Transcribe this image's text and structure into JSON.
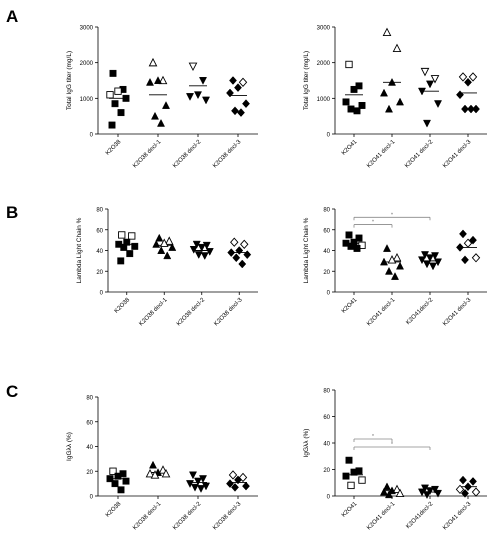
{
  "panels": [
    {
      "letter": "A"
    },
    {
      "letter": "B"
    },
    {
      "letter": "C"
    }
  ],
  "chart_data": [
    {
      "id": "A-left",
      "type": "scatter",
      "ylabel": "Total IgG titer (mg/L)",
      "ylim": [
        0,
        3000
      ],
      "yticks": [
        0,
        1000,
        2000,
        3000
      ],
      "categories": [
        "K2O38",
        "K2O38 decl-1",
        "K2O38 decl-2",
        "K2O38 decl-3"
      ],
      "groups": [
        {
          "category": "K2O38",
          "marker": "square",
          "means": 1000,
          "points": [
            {
              "y": 1700,
              "open": false
            },
            {
              "y": 1250,
              "open": false
            },
            {
              "y": 1200,
              "open": true
            },
            {
              "y": 1100,
              "open": true
            },
            {
              "y": 1000,
              "open": false
            },
            {
              "y": 850,
              "open": false
            },
            {
              "y": 600,
              "open": false
            },
            {
              "y": 250,
              "open": false
            }
          ]
        },
        {
          "category": "K2O38 decl-1",
          "marker": "triangle-up",
          "means": 1100,
          "points": [
            {
              "y": 2000,
              "open": true
            },
            {
              "y": 1500,
              "open": true
            },
            {
              "y": 1500,
              "open": false
            },
            {
              "y": 1450,
              "open": false
            },
            {
              "y": 800,
              "open": false
            },
            {
              "y": 500,
              "open": false
            },
            {
              "y": 300,
              "open": false
            }
          ]
        },
        {
          "category": "K2O38 decl-2",
          "marker": "triangle-down",
          "means": 1350,
          "points": [
            {
              "y": 1900,
              "open": true
            },
            {
              "y": 1500,
              "open": false
            },
            {
              "y": 1100,
              "open": false
            },
            {
              "y": 1050,
              "open": false
            },
            {
              "y": 950,
              "open": false
            }
          ]
        },
        {
          "category": "K2O38 decl-3",
          "marker": "diamond",
          "means": 1080,
          "points": [
            {
              "y": 1500,
              "open": false
            },
            {
              "y": 1450,
              "open": true
            },
            {
              "y": 1300,
              "open": false
            },
            {
              "y": 1150,
              "open": false
            },
            {
              "y": 850,
              "open": false
            },
            {
              "y": 650,
              "open": false
            },
            {
              "y": 600,
              "open": false
            }
          ]
        }
      ]
    },
    {
      "id": "A-right",
      "type": "scatter",
      "ylabel": "Total IgG titer (mg/L)",
      "ylim": [
        0,
        3000
      ],
      "yticks": [
        0,
        1000,
        2000,
        3000
      ],
      "categories": [
        "K2O41",
        "K2O41 decl-1",
        "K2O41 decl-2",
        "K2O41 decl-3"
      ],
      "groups": [
        {
          "category": "K2O41",
          "marker": "square",
          "means": 1100,
          "points": [
            {
              "y": 1950,
              "open": true
            },
            {
              "y": 1350,
              "open": false
            },
            {
              "y": 1250,
              "open": false
            },
            {
              "y": 900,
              "open": false
            },
            {
              "y": 800,
              "open": false
            },
            {
              "y": 700,
              "open": false
            },
            {
              "y": 650,
              "open": false
            }
          ]
        },
        {
          "category": "K2O41 decl-1",
          "marker": "triangle-up",
          "means": 1450,
          "points": [
            {
              "y": 2850,
              "open": true
            },
            {
              "y": 2400,
              "open": true
            },
            {
              "y": 1450,
              "open": false
            },
            {
              "y": 1150,
              "open": false
            },
            {
              "y": 900,
              "open": false
            },
            {
              "y": 700,
              "open": false
            }
          ]
        },
        {
          "category": "K2O41 decl-2",
          "marker": "triangle-down",
          "means": 1200,
          "points": [
            {
              "y": 1750,
              "open": true
            },
            {
              "y": 1550,
              "open": true
            },
            {
              "y": 1400,
              "open": false
            },
            {
              "y": 1200,
              "open": false
            },
            {
              "y": 850,
              "open": false
            },
            {
              "y": 300,
              "open": false
            }
          ]
        },
        {
          "category": "K2O41 decl-3",
          "marker": "diamond",
          "means": 1150,
          "points": [
            {
              "y": 1600,
              "open": true
            },
            {
              "y": 1600,
              "open": true
            },
            {
              "y": 1450,
              "open": false
            },
            {
              "y": 1100,
              "open": false
            },
            {
              "y": 700,
              "open": false
            },
            {
              "y": 700,
              "open": false
            },
            {
              "y": 700,
              "open": false
            }
          ]
        }
      ]
    },
    {
      "id": "B-left",
      "type": "scatter",
      "ylabel": "Lambda Light Chain %",
      "ylim": [
        0,
        80
      ],
      "yticks": [
        0,
        20,
        40,
        60,
        80
      ],
      "categories": [
        "K2O38",
        "K2O38 decl-1",
        "K2O38 decl-2",
        "K2O38 decl-3"
      ],
      "groups": [
        {
          "category": "K2O38",
          "marker": "square",
          "means": 46,
          "points": [
            {
              "y": 55,
              "open": true
            },
            {
              "y": 54,
              "open": true
            },
            {
              "y": 48,
              "open": false
            },
            {
              "y": 46,
              "open": false
            },
            {
              "y": 44,
              "open": false
            },
            {
              "y": 43,
              "open": false
            },
            {
              "y": 37,
              "open": false
            },
            {
              "y": 30,
              "open": false
            }
          ]
        },
        {
          "category": "K2O38 decl-1",
          "marker": "triangle-up",
          "means": 45,
          "points": [
            {
              "y": 52,
              "open": false
            },
            {
              "y": 49,
              "open": true
            },
            {
              "y": 47,
              "open": true
            },
            {
              "y": 46,
              "open": false
            },
            {
              "y": 43,
              "open": false
            },
            {
              "y": 40,
              "open": false
            },
            {
              "y": 35,
              "open": false
            }
          ]
        },
        {
          "category": "K2O38 decl-2",
          "marker": "triangle-down",
          "means": 40,
          "points": [
            {
              "y": 46,
              "open": false
            },
            {
              "y": 45,
              "open": false
            },
            {
              "y": 43,
              "open": false
            },
            {
              "y": 41,
              "open": false
            },
            {
              "y": 39,
              "open": false
            },
            {
              "y": 36,
              "open": false
            },
            {
              "y": 35,
              "open": false
            }
          ]
        },
        {
          "category": "K2O38 decl-3",
          "marker": "diamond",
          "means": 38,
          "points": [
            {
              "y": 48,
              "open": true
            },
            {
              "y": 46,
              "open": true
            },
            {
              "y": 40,
              "open": false
            },
            {
              "y": 38,
              "open": false
            },
            {
              "y": 36,
              "open": false
            },
            {
              "y": 33,
              "open": false
            },
            {
              "y": 27,
              "open": false
            }
          ]
        }
      ]
    },
    {
      "id": "B-right",
      "type": "scatter",
      "ylabel": "Lambda Light Chain %",
      "ylim": [
        0,
        80
      ],
      "yticks": [
        0,
        20,
        40,
        60,
        80
      ],
      "categories": [
        "K2O41",
        "K2O41 decl-1",
        "K2O41decl-2",
        "K2O41 decl-3"
      ],
      "groups": [
        {
          "category": "K2O41",
          "marker": "square",
          "means": 47,
          "points": [
            {
              "y": 55,
              "open": false
            },
            {
              "y": 52,
              "open": false
            },
            {
              "y": 48,
              "open": false
            },
            {
              "y": 47,
              "open": false
            },
            {
              "y": 45,
              "open": true
            },
            {
              "y": 44,
              "open": false
            },
            {
              "y": 42,
              "open": false
            }
          ]
        },
        {
          "category": "K2O41 decl-1",
          "marker": "triangle-up",
          "means": 29,
          "points": [
            {
              "y": 42,
              "open": false
            },
            {
              "y": 33,
              "open": true
            },
            {
              "y": 31,
              "open": true
            },
            {
              "y": 29,
              "open": false
            },
            {
              "y": 25,
              "open": false
            },
            {
              "y": 20,
              "open": false
            },
            {
              "y": 15,
              "open": false
            }
          ]
        },
        {
          "category": "K2O41decl-2",
          "marker": "triangle-down",
          "means": 30,
          "points": [
            {
              "y": 36,
              "open": false
            },
            {
              "y": 35,
              "open": false
            },
            {
              "y": 33,
              "open": false
            },
            {
              "y": 31,
              "open": false
            },
            {
              "y": 29,
              "open": false
            },
            {
              "y": 27,
              "open": false
            },
            {
              "y": 25,
              "open": false
            }
          ]
        },
        {
          "category": "K2O41 decl-3",
          "marker": "diamond",
          "means": 43,
          "points": [
            {
              "y": 56,
              "open": false
            },
            {
              "y": 50,
              "open": false
            },
            {
              "y": 47,
              "open": true
            },
            {
              "y": 43,
              "open": false
            },
            {
              "y": 33,
              "open": true
            },
            {
              "y": 31,
              "open": false
            }
          ]
        }
      ],
      "significance": [
        {
          "from": "K2O41",
          "to": "K2O41 decl-1",
          "y": 65,
          "label": "*"
        },
        {
          "from": "K2O41",
          "to": "K2O41decl-2",
          "y": 72,
          "label": "*"
        }
      ]
    },
    {
      "id": "C-left",
      "type": "scatter",
      "ylabel": "IgGλλ (%)",
      "ylim": [
        0,
        80
      ],
      "yticks": [
        0,
        20,
        40,
        60,
        80
      ],
      "categories": [
        "K2O38",
        "K2O38 decl-1",
        "K2O38 decl-2",
        "K2O38 decl-3"
      ],
      "groups": [
        {
          "category": "K2O38",
          "marker": "square",
          "means": 14,
          "points": [
            {
              "y": 20,
              "open": true
            },
            {
              "y": 18,
              "open": false
            },
            {
              "y": 16,
              "open": false
            },
            {
              "y": 14,
              "open": false
            },
            {
              "y": 12,
              "open": false
            },
            {
              "y": 10,
              "open": false
            },
            {
              "y": 5,
              "open": false
            }
          ]
        },
        {
          "category": "K2O38 decl-1",
          "marker": "triangle-up",
          "means": 19,
          "points": [
            {
              "y": 25,
              "open": false
            },
            {
              "y": 21,
              "open": true
            },
            {
              "y": 19,
              "open": false
            },
            {
              "y": 18,
              "open": true
            },
            {
              "y": 18,
              "open": true
            },
            {
              "y": 17,
              "open": true
            }
          ]
        },
        {
          "category": "K2O38 decl-2",
          "marker": "triangle-down",
          "means": 11,
          "points": [
            {
              "y": 17,
              "open": false
            },
            {
              "y": 14,
              "open": false
            },
            {
              "y": 12,
              "open": false
            },
            {
              "y": 10,
              "open": false
            },
            {
              "y": 8,
              "open": false
            },
            {
              "y": 7,
              "open": false
            },
            {
              "y": 6,
              "open": false
            }
          ]
        },
        {
          "category": "K2O38 decl-3",
          "marker": "diamond",
          "means": 11,
          "points": [
            {
              "y": 17,
              "open": true
            },
            {
              "y": 15,
              "open": true
            },
            {
              "y": 13,
              "open": false
            },
            {
              "y": 10,
              "open": false
            },
            {
              "y": 8,
              "open": false
            },
            {
              "y": 7,
              "open": false
            }
          ]
        }
      ]
    },
    {
      "id": "C-right",
      "type": "scatter",
      "ylabel": "IgGλλ (%)",
      "ylim": [
        0,
        80
      ],
      "yticks": [
        0,
        20,
        40,
        60,
        80
      ],
      "categories": [
        "K2O41",
        "K2O41 decl-1",
        "K2O41decl-2",
        "K2O41 decl-3"
      ],
      "groups": [
        {
          "category": "K2O41",
          "marker": "square",
          "means": 16,
          "points": [
            {
              "y": 27,
              "open": false
            },
            {
              "y": 19,
              "open": false
            },
            {
              "y": 18,
              "open": false
            },
            {
              "y": 15,
              "open": false
            },
            {
              "y": 12,
              "open": true
            },
            {
              "y": 8,
              "open": true
            }
          ]
        },
        {
          "category": "K2O41 decl-1",
          "marker": "triangle-up",
          "means": 4,
          "points": [
            {
              "y": 7,
              "open": false
            },
            {
              "y": 5,
              "open": true
            },
            {
              "y": 4,
              "open": false
            },
            {
              "y": 3,
              "open": false
            },
            {
              "y": 2,
              "open": true
            },
            {
              "y": 1,
              "open": false
            }
          ]
        },
        {
          "category": "K2O41decl-2",
          "marker": "triangle-down",
          "means": 3,
          "points": [
            {
              "y": 6,
              "open": false
            },
            {
              "y": 5,
              "open": false
            },
            {
              "y": 4,
              "open": false
            },
            {
              "y": 3,
              "open": false
            },
            {
              "y": 2,
              "open": false
            },
            {
              "y": 1,
              "open": false
            }
          ]
        },
        {
          "category": "K2O41 decl-3",
          "marker": "diamond",
          "means": 7,
          "points": [
            {
              "y": 12,
              "open": false
            },
            {
              "y": 11,
              "open": false
            },
            {
              "y": 7,
              "open": false
            },
            {
              "y": 5,
              "open": true
            },
            {
              "y": 3,
              "open": true
            },
            {
              "y": 2,
              "open": false
            }
          ]
        }
      ],
      "significance": [
        {
          "from": "K2O41",
          "to": "K2O41 decl-1",
          "y": 43,
          "label": "*"
        },
        {
          "from": "K2O41",
          "to": "K2O41decl-2",
          "y": 37,
          "label": "*"
        }
      ]
    }
  ]
}
